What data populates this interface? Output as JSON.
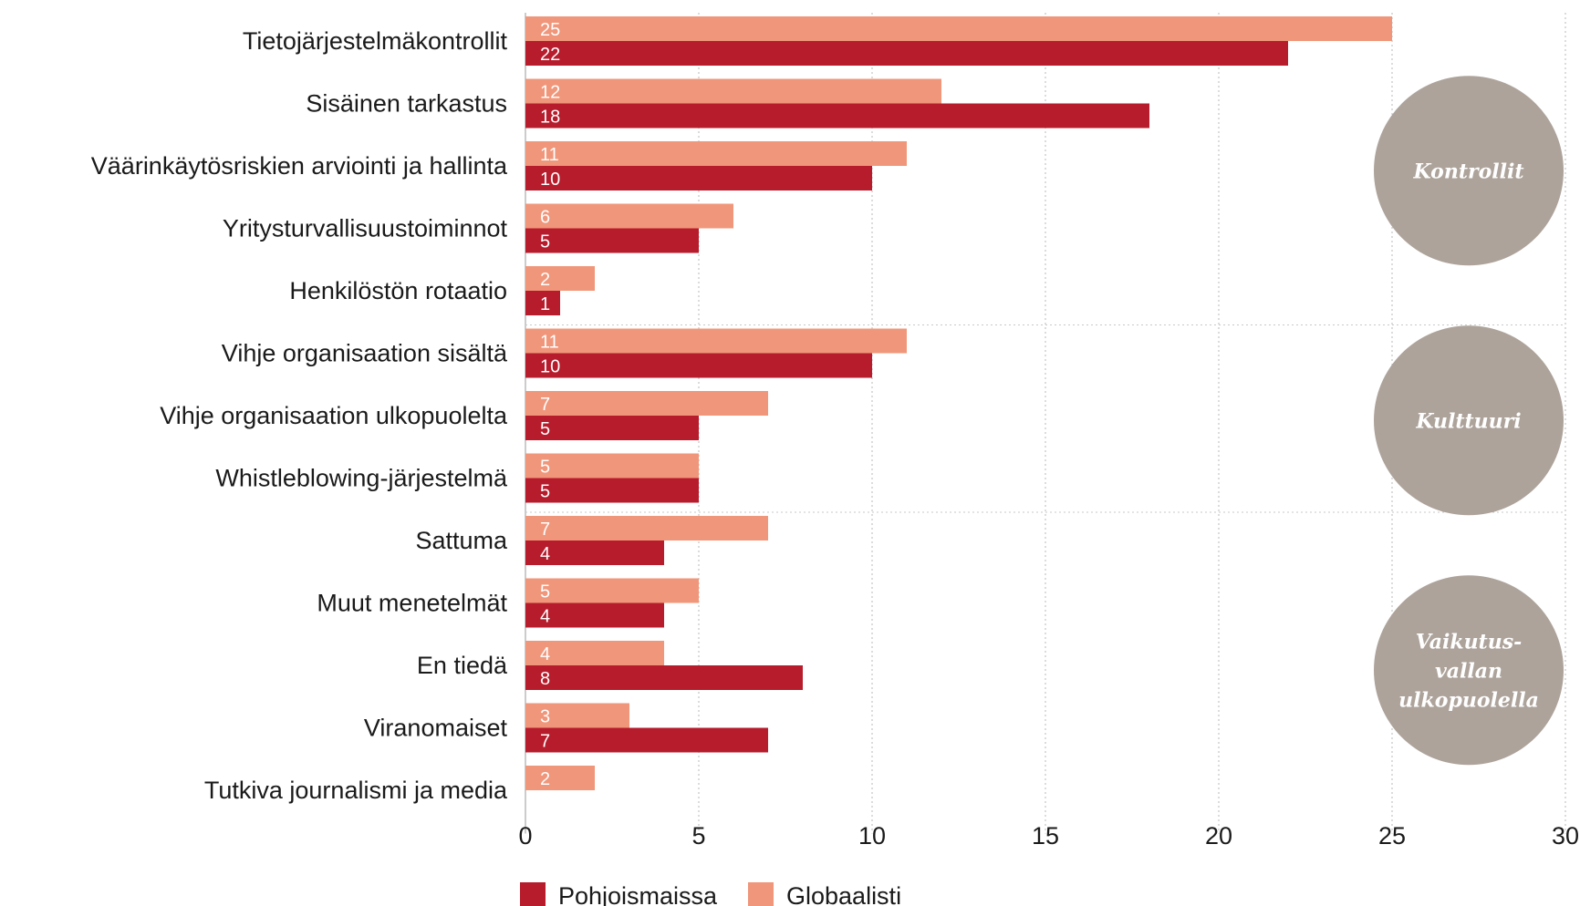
{
  "chart_data": {
    "type": "bar",
    "orientation": "horizontal",
    "categories": [
      "Tietojärjestelmäkontrollit",
      "Sisäinen tarkastus",
      "Väärinkäytösriskien arviointi ja hallinta",
      "Yritysturvallisuustoiminnot",
      "Henkilöstön rotaatio",
      "Vihje organisaation sisältä",
      "Vihje organisaation ulkopuolelta",
      "Whistleblowing-järjestelmä",
      "Sattuma",
      "Muut menetelmät",
      "En tiedä",
      "Viranomaiset",
      "Tutkiva journalismi ja media"
    ],
    "series": [
      {
        "name": "Globaalisti",
        "color": "#f0967a",
        "values": [
          25,
          12,
          11,
          6,
          2,
          11,
          7,
          5,
          7,
          5,
          4,
          3,
          2
        ]
      },
      {
        "name": "Pohjoismaissa",
        "color": "#b71c2c",
        "values": [
          22,
          18,
          10,
          5,
          1,
          10,
          5,
          5,
          4,
          4,
          8,
          7,
          null
        ]
      }
    ],
    "xlim": [
      0,
      30
    ],
    "xticks": [
      0,
      5,
      10,
      15,
      20,
      25,
      30
    ],
    "grid": "vertical dotted",
    "legend_position": "bottom",
    "legend_order": [
      "Pohjoismaissa",
      "Globaalisti"
    ],
    "groups": [
      {
        "lines": [
          "Kontrollit"
        ],
        "start": 0,
        "end": 4
      },
      {
        "lines": [
          "Kulttuuri"
        ],
        "start": 5,
        "end": 7
      },
      {
        "lines": [
          "Vaikutus-",
          "vallan",
          "ulkopuolella"
        ],
        "start": 8,
        "end": 12
      }
    ],
    "group_circle_color": "#ada39b"
  }
}
